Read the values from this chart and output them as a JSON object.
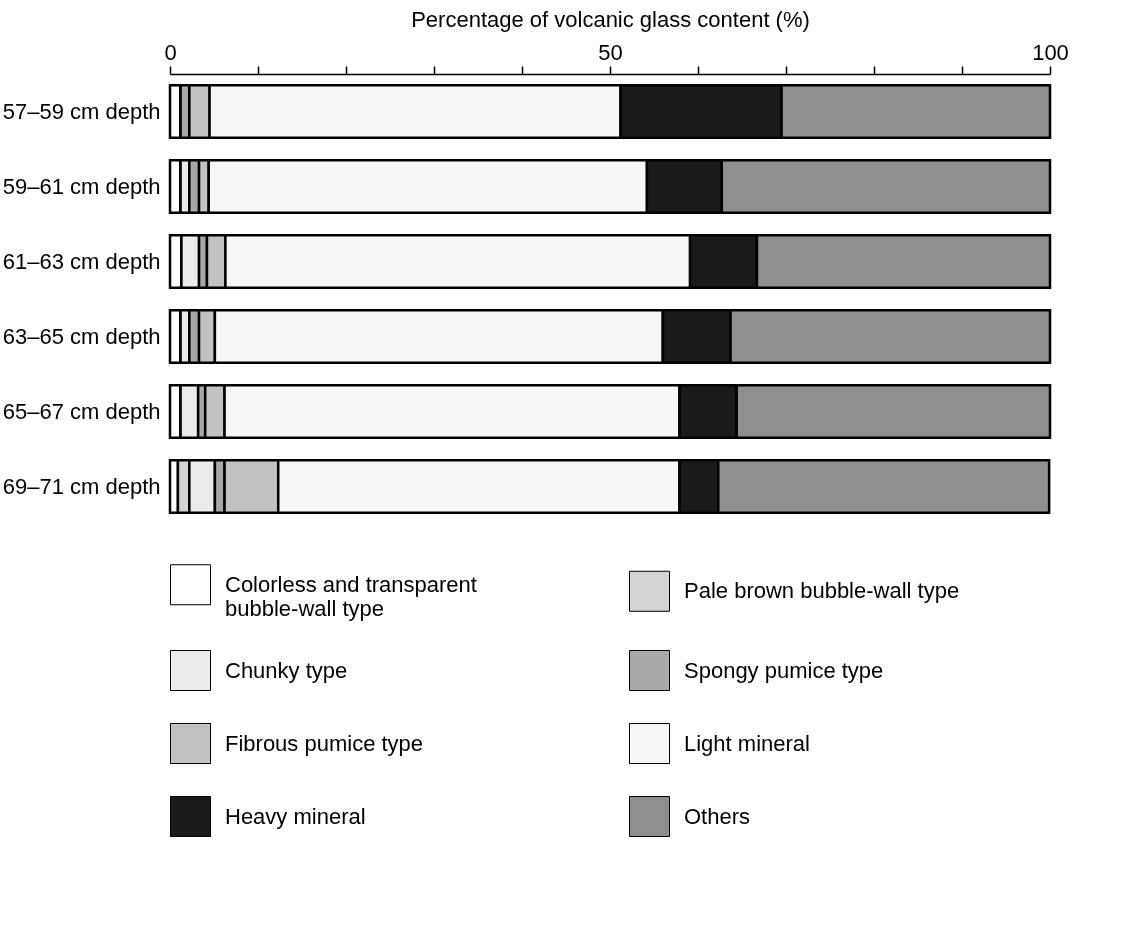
{
  "chart_data": {
    "type": "bar",
    "orientation": "horizontal",
    "stacked": true,
    "xlabel": "Percentage of volcanic glass content (%)",
    "categories": [
      "57–59 cm depth",
      "59–61 cm depth",
      "61–63 cm depth",
      "63–65 cm depth",
      "65–67 cm depth",
      "69–71 cm depth"
    ],
    "xlim": [
      0,
      100
    ],
    "xticks": [
      0,
      {
        "value": 10,
        "label": null
      },
      {
        "value": 20,
        "label": null
      },
      {
        "value": 30,
        "label": null
      },
      {
        "value": 40,
        "label": null
      },
      50,
      {
        "value": 60,
        "label": null
      },
      {
        "value": 70,
        "label": null
      },
      {
        "value": 80,
        "label": null
      },
      {
        "value": 90,
        "label": null
      },
      100
    ],
    "grid": false,
    "legend": "bottom",
    "series": [
      {
        "name": "Colorless and transparent bubble-wall type",
        "color": "#ffffff",
        "values": [
          1.2,
          1.2,
          1.3,
          1.2,
          1.2,
          0.9
        ]
      },
      {
        "name": "Pale brown bubble-wall type",
        "color": "#d4d4d4",
        "values": [
          0,
          0,
          0,
          0,
          0,
          1.3
        ]
      },
      {
        "name": "Chunky type",
        "color": "#ebebeb",
        "values": [
          0,
          1.0,
          2.0,
          1.0,
          2.0,
          2.9
        ]
      },
      {
        "name": "Spongy pumice type",
        "color": "#a8a8a8",
        "values": [
          1.0,
          1.1,
          0.9,
          1.1,
          0.8,
          1.1
        ]
      },
      {
        "name": "Fibrous pumice type",
        "color": "#c2c2c2",
        "values": [
          2.3,
          1.1,
          2.1,
          1.8,
          2.2,
          6.1
        ]
      },
      {
        "name": "Light mineral",
        "color": "#f7f7f7",
        "values": [
          46.7,
          49.8,
          52.8,
          50.9,
          51.7,
          45.6
        ]
      },
      {
        "name": "Heavy mineral",
        "color": "#1a1a1a",
        "values": [
          18.3,
          8.5,
          7.6,
          7.7,
          6.5,
          4.4
        ]
      },
      {
        "name": "Others",
        "color": "#8f8f8f",
        "values": [
          30.5,
          37.3,
          33.3,
          36.3,
          35.6,
          37.6
        ]
      }
    ]
  }
}
